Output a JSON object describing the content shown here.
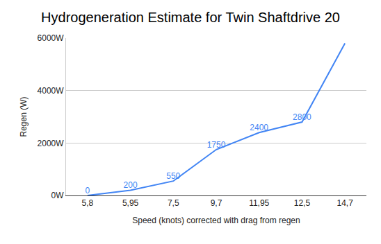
{
  "chart_data": {
    "type": "line",
    "title": "Hydrogeneration Estimate for Twin Shaftdrive 20",
    "x_label": "Speed (knots) corrected with drag from regen",
    "y_label": "Regen (W)",
    "categories": [
      "5,8",
      "5,95",
      "7,5",
      "9,7",
      "11,95",
      "12,5",
      "14,7"
    ],
    "values": [
      0,
      200,
      550,
      1750,
      2400,
      2800,
      5800
    ],
    "value_labels": [
      "0",
      "200",
      "550",
      "1750",
      "2400",
      "2800",
      null
    ],
    "data_labels": true,
    "color": "#4285f4",
    "ylim": [
      0,
      6000
    ],
    "yticks": [
      {
        "value": 0,
        "label": "0W"
      },
      {
        "value": 2000,
        "label": "2000W"
      },
      {
        "value": 4000,
        "label": "4000W"
      },
      {
        "value": 6000,
        "label": "6000W"
      }
    ],
    "grid": true
  }
}
